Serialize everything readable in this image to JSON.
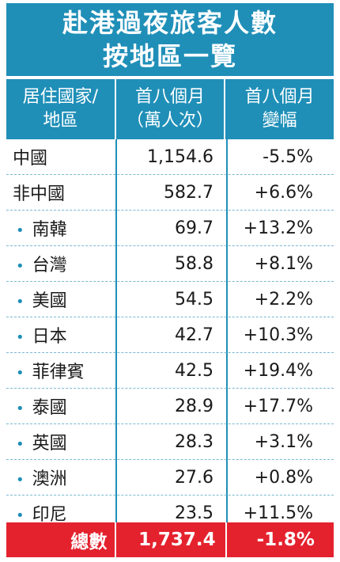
{
  "title": {
    "line1": "赴港過夜旅客人數",
    "line2": "按地區一覽"
  },
  "header": {
    "col1": [
      "居住國家/",
      "地區"
    ],
    "col2": [
      "首八個月",
      "（萬人次）"
    ],
    "col3": [
      "首八個月",
      "變幅"
    ]
  },
  "rows": [
    {
      "name": "中國",
      "value": "1,154.6",
      "change": "-5.5%",
      "sub": false
    },
    {
      "name": "非中國",
      "value": "582.7",
      "change": "+6.6%",
      "sub": false
    },
    {
      "name": "南韓",
      "value": "69.7",
      "change": "+13.2%",
      "sub": true
    },
    {
      "name": "台灣",
      "value": "58.8",
      "change": "+8.1%",
      "sub": true
    },
    {
      "name": "美國",
      "value": "54.5",
      "change": "+2.2%",
      "sub": true
    },
    {
      "name": "日本",
      "value": "42.7",
      "change": "+10.3%",
      "sub": true
    },
    {
      "name": "菲律賓",
      "value": "42.5",
      "change": "+19.4%",
      "sub": true
    },
    {
      "name": "泰國",
      "value": "28.9",
      "change": "+17.7%",
      "sub": true
    },
    {
      "name": "英國",
      "value": "28.3",
      "change": "+3.1%",
      "sub": true
    },
    {
      "name": "澳洲",
      "value": "27.6",
      "change": "+0.8%",
      "sub": true
    },
    {
      "name": "印尼",
      "value": "23.5",
      "change": "+11.5%",
      "sub": true
    }
  ],
  "bullet": "•",
  "total": {
    "label": "總數",
    "value": "1,737.4",
    "change": "-1.8%"
  },
  "colors": {
    "header_bg": "#1f8fb8",
    "total_bg": "#e4222e"
  }
}
